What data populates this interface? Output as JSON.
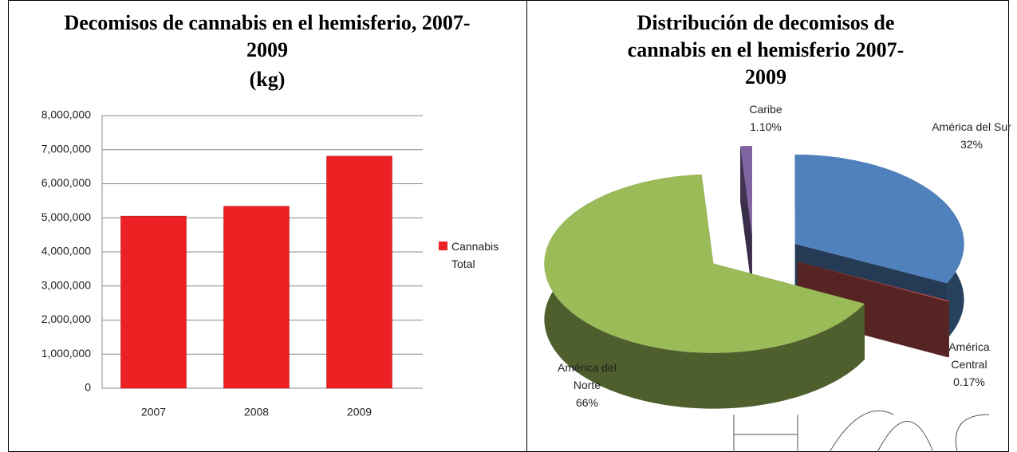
{
  "chart_data": [
    {
      "type": "bar",
      "title": "Decomisos de cannabis en el hemisferio, 2007-2009",
      "subtitle": "(kg)",
      "categories": [
        "2007",
        "2008",
        "2009"
      ],
      "series": [
        {
          "name": "Cannabis Total",
          "color": "#ed2024",
          "values": [
            5050000,
            5340000,
            6810000
          ]
        }
      ],
      "ylim": [
        0,
        8000000
      ],
      "yticks": [
        0,
        {
          "value": 1000000,
          "label": "1,000,000"
        },
        {
          "value": 2000000,
          "label": "2,000,000"
        },
        {
          "value": 3000000,
          "label": "3,000,000"
        },
        {
          "value": 4000000,
          "label": "4,000,000"
        },
        {
          "value": 5000000,
          "label": "5,000,000"
        },
        {
          "value": 6000000,
          "label": "6,000,000"
        },
        {
          "value": 7000000,
          "label": "7,000,000"
        },
        {
          "value": 8000000,
          "label": "8,000,000"
        }
      ],
      "grid": true,
      "legend": "right"
    },
    {
      "type": "pie",
      "title": "Distribución de decomisos de cannabis en el hemisferio 2007-2009",
      "categories": [
        "América del Sur",
        "América Central",
        "América del Norte",
        "Caribe"
      ],
      "values": [
        32,
        0.17,
        66,
        1.1
      ],
      "value_labels": [
        "32%",
        "0.17%",
        "66%",
        "1.10%"
      ],
      "colors": [
        "#4f81bd",
        "#c0504d",
        "#9bbb59",
        "#8064a2"
      ],
      "three_d": true,
      "exploded": true
    }
  ]
}
